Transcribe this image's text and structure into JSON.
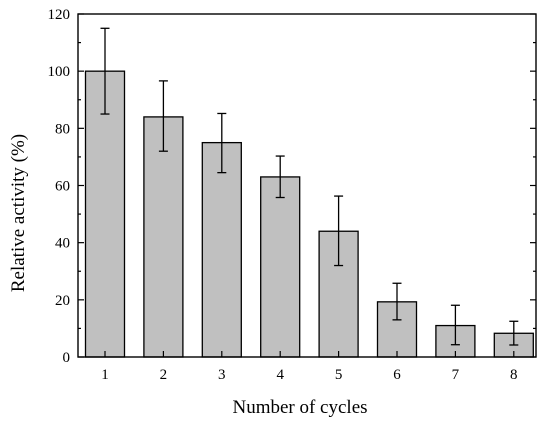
{
  "chart_data": {
    "type": "bar",
    "categories": [
      "1",
      "2",
      "3",
      "4",
      "5",
      "6",
      "7",
      "8"
    ],
    "values": [
      100,
      84,
      75,
      63,
      44,
      19.3,
      11,
      8.3
    ],
    "error_low": [
      85,
      72,
      64.5,
      55.8,
      32,
      13,
      4.3,
      4.2
    ],
    "error_high": [
      115,
      96.6,
      85.2,
      70.3,
      56.3,
      25.8,
      18.1,
      12.5
    ],
    "xlabel": "Number of cycles",
    "ylabel": "Relative activity (%)",
    "ylim": [
      0,
      120
    ],
    "yticks": [
      0,
      20,
      40,
      60,
      80,
      100,
      120
    ],
    "grid": false,
    "bar_color": "#c0c0c0"
  }
}
